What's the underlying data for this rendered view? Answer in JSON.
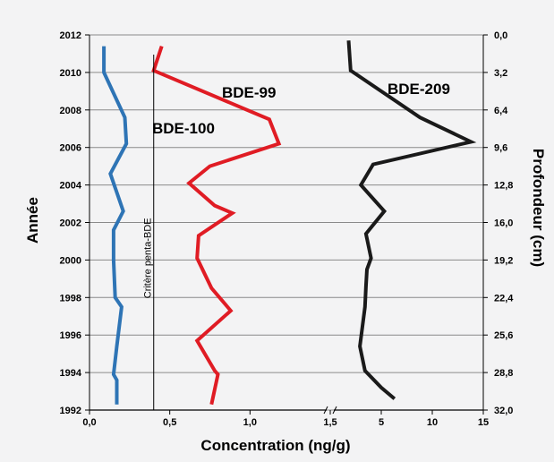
{
  "chart_data": {
    "type": "line",
    "xlabel": "Concentration (ng/g)",
    "ylabel_left": "Année",
    "ylabel_right": "Profondeur (cm)",
    "left_axis": {
      "range": [
        1992,
        2012
      ],
      "ticks": [
        "2012",
        "2010",
        "2008",
        "2006",
        "2004",
        "2002",
        "2000",
        "1998",
        "1996",
        "1994",
        "1992"
      ]
    },
    "right_axis": {
      "ticks": [
        "0,0",
        "3,2",
        "6,4",
        "9,6",
        "12,8",
        "16,0",
        "19,2",
        "22,4",
        "25,6",
        "28,8",
        "32,0"
      ]
    },
    "x_axis_left_segment": {
      "range": [
        0,
        1.5
      ],
      "ticks": [
        {
          "v": 0.0,
          "label": "0,0"
        },
        {
          "v": 0.5,
          "label": "0,5"
        },
        {
          "v": 1.0,
          "label": "1,0"
        },
        {
          "v": 1.5,
          "label": "1,5"
        }
      ]
    },
    "x_axis_right_segment": {
      "range": [
        0,
        15
      ],
      "ticks": [
        {
          "v": 5,
          "label": "5"
        },
        {
          "v": 10,
          "label": "10"
        },
        {
          "v": 15,
          "label": "15"
        }
      ]
    },
    "grid": true,
    "series": [
      {
        "name": "BDE-100",
        "color": "#2e74b5",
        "segment": "left",
        "points": [
          [
            0.09,
            2011.4
          ],
          [
            0.09,
            2010.0
          ],
          [
            0.22,
            2007.6
          ],
          [
            0.23,
            2006.2
          ],
          [
            0.13,
            2004.6
          ],
          [
            0.21,
            2002.6
          ],
          [
            0.15,
            2001.6
          ],
          [
            0.15,
            2000.0
          ],
          [
            0.16,
            1998.0
          ],
          [
            0.2,
            1997.5
          ],
          [
            0.17,
            1995.4
          ],
          [
            0.15,
            1993.9
          ],
          [
            0.17,
            1993.6
          ],
          [
            0.17,
            1992.3
          ]
        ]
      },
      {
        "name": "BDE-99",
        "color": "#e01c24",
        "segment": "left",
        "points": [
          [
            0.45,
            2011.4
          ],
          [
            0.4,
            2010.1
          ],
          [
            1.12,
            2007.5
          ],
          [
            1.18,
            2006.2
          ],
          [
            0.75,
            2005.0
          ],
          [
            0.62,
            2004.1
          ],
          [
            0.78,
            2002.9
          ],
          [
            0.89,
            2002.5
          ],
          [
            0.68,
            2001.3
          ],
          [
            0.67,
            2000.1
          ],
          [
            0.76,
            1998.5
          ],
          [
            0.88,
            1997.3
          ],
          [
            0.67,
            1995.7
          ],
          [
            0.78,
            1994.1
          ],
          [
            0.8,
            1993.9
          ],
          [
            0.76,
            1992.3
          ]
        ]
      },
      {
        "name": "BDE-209",
        "color": "#1a1a1a",
        "segment": "right",
        "points": [
          [
            1.8,
            2011.7
          ],
          [
            2.0,
            2010.1
          ],
          [
            8.8,
            2007.6
          ],
          [
            13.8,
            2006.3
          ],
          [
            4.2,
            2005.1
          ],
          [
            3.0,
            2004.0
          ],
          [
            5.3,
            2002.6
          ],
          [
            3.5,
            2001.4
          ],
          [
            4.0,
            2000.1
          ],
          [
            3.6,
            1999.5
          ],
          [
            3.5,
            1998.6
          ],
          [
            3.4,
            1997.5
          ],
          [
            2.9,
            1995.4
          ],
          [
            3.4,
            1994.1
          ],
          [
            5.0,
            1993.2
          ],
          [
            6.3,
            1992.6
          ]
        ]
      }
    ],
    "annotations": [
      {
        "text": "Critère penta-BDE",
        "x": 0.4,
        "segment": "left",
        "orientation": "vertical"
      },
      {
        "text": "BDE-99"
      },
      {
        "text": "BDE-100"
      },
      {
        "text": "BDE-209"
      }
    ]
  }
}
